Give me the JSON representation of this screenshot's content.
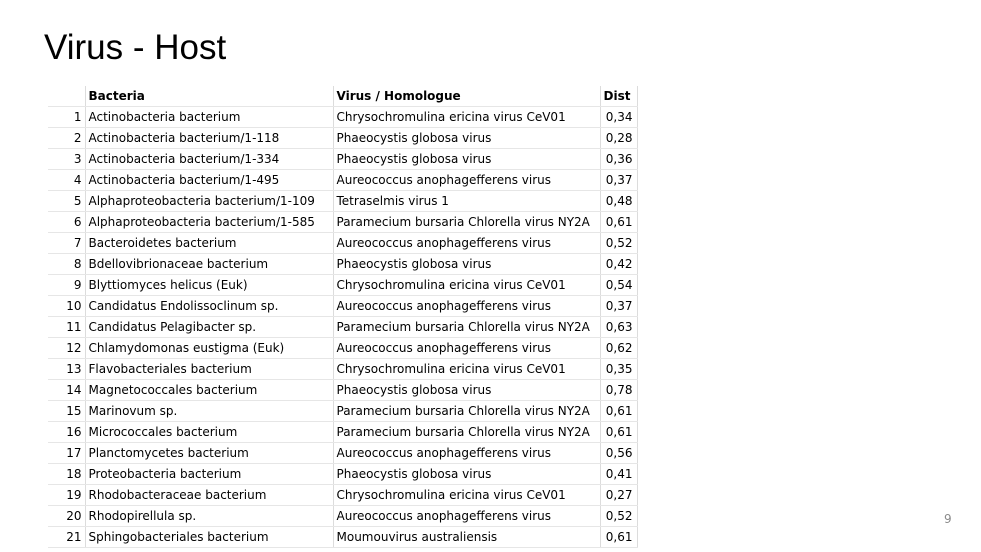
{
  "slide": {
    "title": "Virus - Host",
    "page_number": "9"
  },
  "table": {
    "headers": {
      "index": "",
      "bacteria": "Bacteria",
      "virus": "Virus / Homologue",
      "dist": "Dist"
    },
    "rows": [
      {
        "n": "1",
        "bacteria": "Actinobacteria bacterium",
        "virus": "Chrysochromulina ericina virus CeV01",
        "dist": "0,34"
      },
      {
        "n": "2",
        "bacteria": "Actinobacteria bacterium/1-118",
        "virus": "Phaeocystis globosa virus",
        "dist": "0,28"
      },
      {
        "n": "3",
        "bacteria": "Actinobacteria bacterium/1-334",
        "virus": "Phaeocystis globosa virus",
        "dist": "0,36"
      },
      {
        "n": "4",
        "bacteria": "Actinobacteria bacterium/1-495",
        "virus": "Aureococcus anophagefferens virus",
        "dist": "0,37"
      },
      {
        "n": "5",
        "bacteria": "Alphaproteobacteria bacterium/1-109",
        "virus": "Tetraselmis virus 1",
        "dist": "0,48"
      },
      {
        "n": "6",
        "bacteria": "Alphaproteobacteria bacterium/1-585",
        "virus": "Paramecium bursaria Chlorella virus NY2A",
        "dist": "0,61"
      },
      {
        "n": "7",
        "bacteria": "Bacteroidetes bacterium",
        "virus": "Aureococcus anophagefferens virus",
        "dist": "0,52"
      },
      {
        "n": "8",
        "bacteria": "Bdellovibrionaceae bacterium",
        "virus": "Phaeocystis globosa virus",
        "dist": "0,42"
      },
      {
        "n": "9",
        "bacteria": "Blyttiomyces helicus (Euk)",
        "virus": "Chrysochromulina ericina virus CeV01",
        "dist": "0,54"
      },
      {
        "n": "10",
        "bacteria": "Candidatus Endolissoclinum sp.",
        "virus": "Aureococcus anophagefferens virus",
        "dist": "0,37"
      },
      {
        "n": "11",
        "bacteria": "Candidatus Pelagibacter sp.",
        "virus": "Paramecium bursaria Chlorella virus NY2A",
        "dist": "0,63"
      },
      {
        "n": "12",
        "bacteria": "Chlamydomonas eustigma (Euk)",
        "virus": "Aureococcus anophagefferens virus",
        "dist": "0,62"
      },
      {
        "n": "13",
        "bacteria": "Flavobacteriales bacterium",
        "virus": "Chrysochromulina ericina virus CeV01",
        "dist": "0,35"
      },
      {
        "n": "14",
        "bacteria": "Magnetococcales bacterium",
        "virus": "Phaeocystis globosa virus",
        "dist": "0,78"
      },
      {
        "n": "15",
        "bacteria": "Marinovum sp.",
        "virus": "Paramecium bursaria Chlorella virus NY2A",
        "dist": "0,61"
      },
      {
        "n": "16",
        "bacteria": "Micrococcales bacterium",
        "virus": "Paramecium bursaria Chlorella virus NY2A",
        "dist": "0,61"
      },
      {
        "n": "17",
        "bacteria": "Planctomycetes bacterium",
        "virus": "Aureococcus anophagefferens virus",
        "dist": "0,56"
      },
      {
        "n": "18",
        "bacteria": "Proteobacteria bacterium",
        "virus": "Phaeocystis globosa virus",
        "dist": "0,41"
      },
      {
        "n": "19",
        "bacteria": "Rhodobacteraceae bacterium",
        "virus": "Chrysochromulina ericina virus CeV01",
        "dist": "0,27"
      },
      {
        "n": "20",
        "bacteria": "Rhodopirellula sp.",
        "virus": "Aureococcus anophagefferens virus",
        "dist": "0,52"
      },
      {
        "n": "21",
        "bacteria": "Sphingobacteriales bacterium",
        "virus": "Moumouvirus australiensis",
        "dist": "0,61"
      }
    ]
  }
}
